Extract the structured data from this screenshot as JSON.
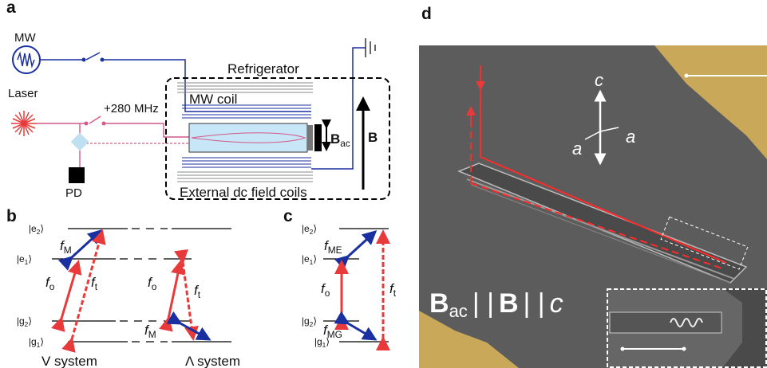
{
  "a": {
    "label": "a",
    "mw": "MW",
    "laser": "Laser",
    "shift": "+280 MHz",
    "pd": "PD",
    "refrigerator": "Refrigerator",
    "mw_coil": "MW coil",
    "dc_coils": "External dc field coils",
    "b_ac": {
      "main": "B",
      "sub": "ac"
    },
    "b": "B"
  },
  "b": {
    "label": "b",
    "levels": [
      {
        "pre": "|e",
        "sub": "2",
        "post": "⟩"
      },
      {
        "pre": "|e",
        "sub": "1",
        "post": "⟩"
      },
      {
        "pre": "|g",
        "sub": "2",
        "post": "⟩"
      },
      {
        "pre": "|g",
        "sub": "1",
        "post": "⟩"
      }
    ],
    "transitions": [
      {
        "main": "f",
        "sub": "M"
      },
      {
        "main": "f",
        "sub": "o"
      },
      {
        "main": "f",
        "sub": "t"
      },
      {
        "main": "f",
        "sub": "o"
      },
      {
        "main": "f",
        "sub": "t"
      },
      {
        "main": "f",
        "sub": "M"
      }
    ],
    "v_system": "V system",
    "lambda_system": "Λ system"
  },
  "c": {
    "label": "c",
    "levels": [
      {
        "pre": "|e",
        "sub": "2",
        "post": "⟩"
      },
      {
        "pre": "|e",
        "sub": "1",
        "post": "⟩"
      },
      {
        "pre": "|g",
        "sub": "2",
        "post": "⟩"
      },
      {
        "pre": "|g",
        "sub": "1",
        "post": "⟩"
      }
    ],
    "transitions": [
      {
        "main": "f",
        "sub": "ME"
      },
      {
        "main": "f",
        "sub": "o"
      },
      {
        "main": "f",
        "sub": "t"
      },
      {
        "main": "f",
        "sub": "MG"
      }
    ]
  },
  "d": {
    "label": "d",
    "axis_c": "c",
    "axis_a1": "a",
    "axis_a2": "a",
    "relation": {
      "b_ac": {
        "main": "B",
        "sub": "ac"
      },
      "sep1": "| |",
      "b": "B",
      "sep2": "| |",
      "c": "c"
    }
  }
}
